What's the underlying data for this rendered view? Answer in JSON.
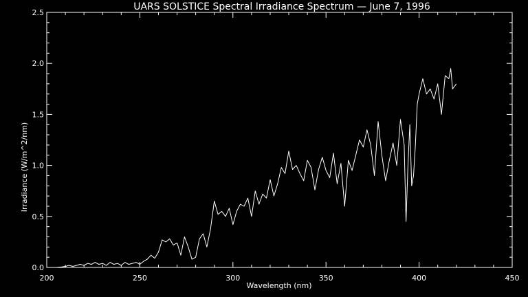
{
  "chart_data": {
    "type": "line",
    "title": "UARS SOLSTICE Spectral Irradiance Spectrum — June 7, 1996",
    "xlabel": "Wavelength (nm)",
    "ylabel": "Irradiance (W/m^2/nm)",
    "xlim": [
      200,
      450
    ],
    "ylim": [
      0.0,
      2.5
    ],
    "x_ticks": [
      "200",
      "250",
      "300",
      "350",
      "400",
      "450"
    ],
    "y_ticks": [
      "0.0",
      "0.5",
      "1.0",
      "1.5",
      "2.0",
      "2.5"
    ],
    "grid": false,
    "colors": {
      "background": "#000000",
      "foreground": "#ffffff"
    },
    "series": [
      {
        "x": [
          205,
          208,
          210,
          212,
          214,
          216,
          218,
          220,
          222,
          224,
          226,
          228,
          230,
          232,
          234,
          236,
          238,
          240,
          242,
          244,
          246,
          248,
          250,
          252,
          254,
          256,
          258,
          260,
          262,
          264,
          266,
          268,
          270,
          272,
          274,
          276,
          278,
          280,
          282,
          284,
          286,
          288,
          290,
          292,
          294,
          296,
          298,
          300,
          302,
          304,
          306,
          308,
          310,
          312,
          314,
          316,
          318,
          320,
          322,
          324,
          326,
          328,
          330,
          332,
          334,
          336,
          338,
          340,
          342,
          344,
          346,
          348,
          350,
          352,
          354,
          356,
          358,
          360,
          362,
          364,
          366,
          368,
          370,
          372,
          374,
          376,
          378,
          380,
          382,
          384,
          386,
          388,
          390,
          392,
          393,
          394,
          395,
          396,
          397,
          398,
          399,
          400,
          402,
          404,
          406,
          408,
          410,
          412,
          414,
          416,
          417,
          418,
          420
        ],
        "values": [
          0.0,
          0.005,
          0.01,
          0.02,
          0.01,
          0.02,
          0.03,
          0.02,
          0.04,
          0.03,
          0.05,
          0.03,
          0.04,
          0.02,
          0.05,
          0.03,
          0.04,
          0.02,
          0.05,
          0.03,
          0.04,
          0.05,
          0.03,
          0.06,
          0.08,
          0.12,
          0.09,
          0.15,
          0.27,
          0.25,
          0.28,
          0.22,
          0.24,
          0.12,
          0.3,
          0.2,
          0.08,
          0.1,
          0.28,
          0.33,
          0.2,
          0.38,
          0.65,
          0.52,
          0.55,
          0.5,
          0.58,
          0.42,
          0.55,
          0.62,
          0.6,
          0.68,
          0.5,
          0.75,
          0.62,
          0.72,
          0.68,
          0.86,
          0.7,
          0.82,
          0.98,
          0.92,
          1.14,
          0.96,
          1.0,
          0.92,
          0.85,
          1.05,
          0.98,
          0.76,
          0.96,
          1.08,
          0.95,
          0.88,
          1.12,
          0.82,
          1.02,
          0.6,
          1.05,
          0.95,
          1.1,
          1.25,
          1.18,
          1.35,
          1.2,
          0.9,
          1.43,
          1.1,
          0.85,
          1.05,
          1.22,
          1.0,
          1.45,
          1.2,
          0.45,
          1.0,
          1.4,
          0.8,
          0.9,
          1.2,
          1.6,
          1.7,
          1.85,
          1.7,
          1.75,
          1.65,
          1.8,
          1.5,
          1.88,
          1.85,
          1.95,
          1.75,
          1.8
        ]
      }
    ]
  }
}
